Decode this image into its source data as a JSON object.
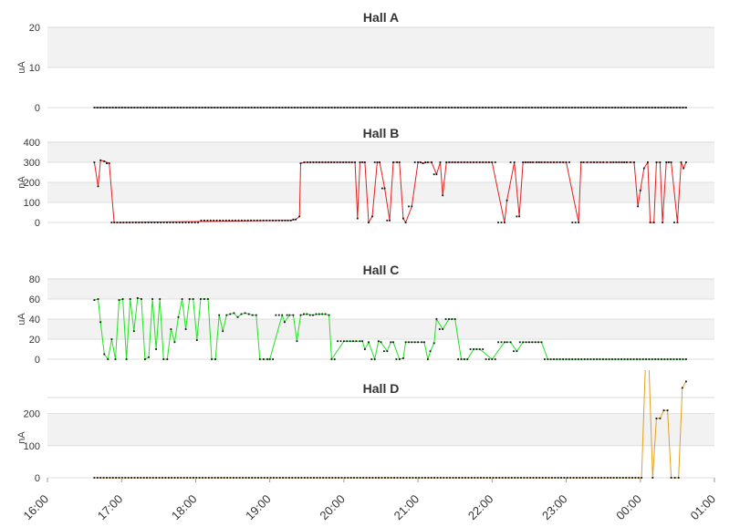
{
  "chart_data": {
    "type": "line",
    "x_tick_labels": [
      "16:00",
      "17:00",
      "18:00",
      "19:00",
      "20:00",
      "21:00",
      "22:00",
      "23:00",
      "00:00",
      "01:00"
    ],
    "x_range": [
      "16:00",
      "01:00"
    ],
    "grid": "alternating horizontal bands",
    "panels": [
      {
        "title": "Hall A",
        "ylabel": "uA",
        "ylim": [
          0,
          20
        ],
        "yticks": [
          "0",
          "10",
          "20"
        ],
        "color": "#222222",
        "series": [
          {
            "x": [
              "16:38",
              "00:37"
            ],
            "y": [
              0,
              0
            ]
          }
        ]
      },
      {
        "title": "Hall B",
        "ylabel": "nA",
        "ylim": [
          0,
          400
        ],
        "yticks": [
          "0",
          "100",
          "200",
          "300",
          "400"
        ],
        "color": "#e02020",
        "series": [
          {
            "x": [
              "16:38",
              "16:41",
              "16:43",
              "16:46",
              "16:50",
              "16:54",
              "16:59",
              "19:10",
              "19:17",
              "19:21",
              "19:24",
              "19:25",
              "19:28",
              "19:45",
              "20:09",
              "20:11",
              "20:13",
              "20:17",
              "20:20",
              "20:23",
              "20:27",
              "20:29",
              "20:33",
              "20:37",
              "20:40",
              "20:43",
              "20:45",
              "20:48",
              "20:50",
              "20:55",
              "21:00",
              "21:02",
              "21:04",
              "21:08",
              "21:11",
              "21:15",
              "21:18",
              "21:20",
              "21:23",
              "21:30",
              "21:40",
              "21:45",
              "22:00",
              "22:10",
              "22:12",
              "22:18",
              "22:22",
              "22:25",
              "22:29",
              "22:31",
              "22:33",
              "22:36",
              "22:40",
              "22:50",
              "23:00",
              "23:10",
              "23:12",
              "23:14",
              "23:17",
              "23:20",
              "23:30",
              "23:36",
              "23:45",
              "23:49",
              "23:52",
              "23:55",
              "23:58",
              "00:00",
              "00:03",
              "00:06",
              "00:08",
              "00:11",
              "00:13",
              "00:16",
              "00:18",
              "00:21",
              "00:23",
              "00:25",
              "00:30",
              "00:33",
              "00:35",
              "00:37"
            ],
            "y": [
              300,
              180,
              310,
              305,
              295,
              0,
              0,
              10,
              10,
              15,
              30,
              295,
              300,
              300,
              300,
              20,
              300,
              300,
              0,
              30,
              300,
              300,
              170,
              10,
              300,
              300,
              300,
              20,
              0,
              80,
              300,
              300,
              295,
              300,
              300,
              240,
              300,
              135,
              300,
              300,
              300,
              300,
              300,
              0,
              110,
              300,
              30,
              300,
              300,
              300,
              300,
              300,
              300,
              300,
              300,
              0,
              300,
              300,
              300,
              300,
              300,
              300,
              300,
              300,
              300,
              300,
              80,
              160,
              270,
              300,
              0,
              0,
              300,
              300,
              0,
              300,
              300,
              300,
              0,
              300,
              270,
              300
            ]
          }
        ]
      },
      {
        "title": "Hall C",
        "ylabel": "uA",
        "ylim": [
          0,
          80
        ],
        "yticks": [
          "0",
          "20",
          "40",
          "60",
          "80"
        ],
        "color": "#22e022",
        "series": [
          {
            "x": [
              "16:38",
              "16:41",
              "16:43",
              "16:46",
              "16:49",
              "16:52",
              "16:55",
              "16:58",
              "17:01",
              "17:04",
              "17:07",
              "17:10",
              "17:13",
              "17:16",
              "17:19",
              "17:22",
              "17:25",
              "17:28",
              "17:31",
              "17:34",
              "17:37",
              "17:40",
              "17:43",
              "17:46",
              "17:49",
              "17:52",
              "17:55",
              "17:58",
              "18:01",
              "18:04",
              "18:07",
              "18:10",
              "18:13",
              "18:16",
              "18:19",
              "18:22",
              "18:25",
              "18:28",
              "18:31",
              "18:34",
              "18:37",
              "18:40",
              "18:43",
              "18:46",
              "18:49",
              "18:52",
              "18:55",
              "18:58",
              "19:00",
              "19:10",
              "19:12",
              "19:16",
              "19:19",
              "19:22",
              "19:25",
              "19:30",
              "19:35",
              "19:40",
              "19:45",
              "19:48",
              "19:50",
              "20:00",
              "20:10",
              "20:13",
              "20:15",
              "20:17",
              "20:20",
              "20:25",
              "20:28",
              "20:30",
              "20:35",
              "20:38",
              "20:40",
              "20:45",
              "20:48",
              "20:50",
              "21:00",
              "21:03",
              "21:05",
              "21:08",
              "21:10",
              "21:13",
              "21:15",
              "21:20",
              "21:25",
              "21:30",
              "21:35",
              "21:40",
              "21:45",
              "21:50",
              "22:00",
              "22:10",
              "22:12",
              "22:15",
              "22:20",
              "22:25",
              "22:30",
              "22:40",
              "22:45",
              "00:37"
            ],
            "y": [
              59,
              60,
              37,
              5,
              0,
              20,
              0,
              59,
              60,
              0,
              60,
              28,
              61,
              60,
              0,
              2,
              60,
              10,
              60,
              0,
              0,
              30,
              17,
              42,
              60,
              30,
              60,
              60,
              19,
              60,
              60,
              60,
              0,
              0,
              44,
              28,
              44,
              45,
              46,
              42,
              45,
              46,
              45,
              44,
              44,
              0,
              0,
              0,
              0,
              44,
              37,
              44,
              44,
              18,
              44,
              45,
              44,
              45,
              45,
              44,
              0,
              18,
              18,
              18,
              18,
              10,
              17,
              0,
              18,
              17,
              8,
              17,
              17,
              0,
              1,
              17,
              17,
              17,
              17,
              0,
              8,
              16,
              40,
              30,
              40,
              40,
              0,
              0,
              10,
              10,
              0,
              17,
              17,
              17,
              8,
              17,
              17,
              17,
              0,
              0
            ]
          }
        ]
      },
      {
        "title": "Hall D",
        "ylabel": "nA",
        "ylim": [
          0,
          250
        ],
        "yticks": [
          "0",
          "100",
          "200"
        ],
        "color": "#e0a020",
        "series": [
          {
            "x": [
              "16:38",
              "00:01",
              "00:04",
              "00:07",
              "00:10",
              "00:13",
              "00:16",
              "00:19",
              "00:22",
              "00:25",
              "00:28",
              "00:31",
              "00:34",
              "00:37"
            ],
            "y": [
              0,
              0,
              340,
              340,
              0,
              185,
              185,
              210,
              210,
              0,
              0,
              0,
              280,
              300
            ]
          }
        ]
      }
    ]
  }
}
